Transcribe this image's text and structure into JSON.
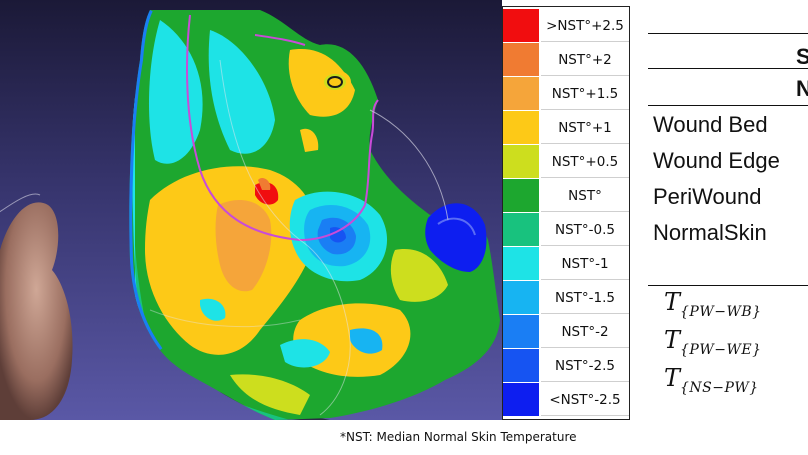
{
  "legend": {
    "items": [
      {
        "label": ">NST°+2.5",
        "color": "#f10d0f"
      },
      {
        "label": "NST°+2",
        "color": "#f07b32"
      },
      {
        "label": "NST°+1.5",
        "color": "#f5a53a"
      },
      {
        "label": "NST°+1",
        "color": "#fdc917"
      },
      {
        "label": "NST°+0.5",
        "color": "#cdde1e"
      },
      {
        "label": "NST°",
        "color": "#1da72f"
      },
      {
        "label": "NST°-0.5",
        "color": "#18c27e"
      },
      {
        "label": "NST°-1",
        "color": "#1ee3e6"
      },
      {
        "label": "NST°-1.5",
        "color": "#17b4f2"
      },
      {
        "label": "NST°-2",
        "color": "#1a7ef4"
      },
      {
        "label": "NST°-2.5",
        "color": "#1654f2"
      },
      {
        "label": "<NST°-2.5",
        "color": "#0d1ef0"
      }
    ]
  },
  "footnote": "*NST: Median Normal Skin Temperature",
  "table": {
    "header_fragment_1": "S",
    "header_fragment_2": "N",
    "rows": [
      "Wound Bed",
      "Wound Edge",
      "PeriWound",
      "NormalSkin"
    ],
    "thresholds": [
      {
        "base": "T",
        "sub": "{PW−WB}"
      },
      {
        "base": "T",
        "sub": "{PW−WE}"
      },
      {
        "base": "T",
        "sub": "{NS−PW}"
      }
    ]
  }
}
